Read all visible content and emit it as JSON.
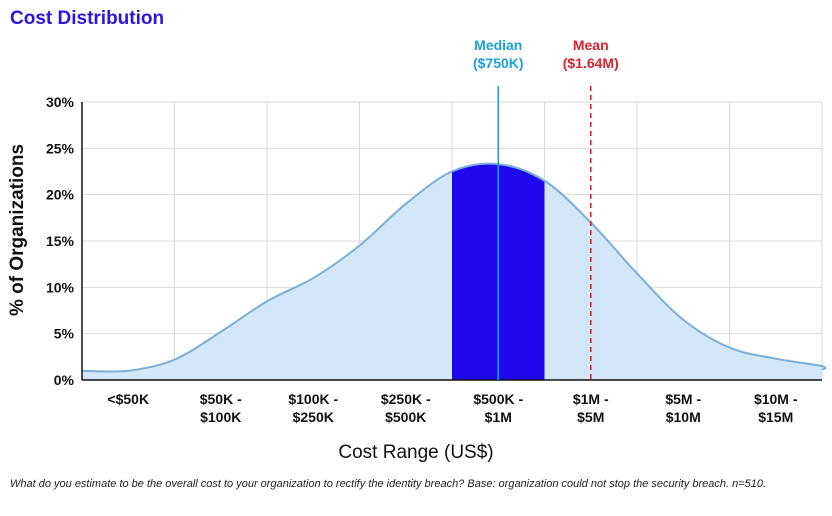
{
  "chart_data": {
    "type": "area",
    "title": "Cost Distribution",
    "xlabel": "Cost Range (US$)",
    "ylabel": "% of Organizations",
    "ylim": [
      0,
      30
    ],
    "yticks": [
      "0%",
      "5%",
      "10%",
      "15%",
      "20%",
      "25%",
      "30%"
    ],
    "categories": [
      [
        "<$50K"
      ],
      [
        "$50K -",
        "$100K"
      ],
      [
        "$100K -",
        "$250K"
      ],
      [
        "$250K -",
        "$500K"
      ],
      [
        "$500K -",
        "$1M"
      ],
      [
        "$1M -",
        "$5M"
      ],
      [
        "$5M -",
        "$10M"
      ],
      [
        "$10M -",
        "$15M"
      ]
    ],
    "curve_points": [
      {
        "x": 0.0,
        "y": 1.0
      },
      {
        "x": 0.5,
        "y": 2.2
      },
      {
        "x": 1.0,
        "y": 5.2
      },
      {
        "x": 1.5,
        "y": 8.5
      },
      {
        "x": 2.0,
        "y": 11.0
      },
      {
        "x": 2.5,
        "y": 14.5
      },
      {
        "x": 3.0,
        "y": 19.0
      },
      {
        "x": 3.5,
        "y": 22.5
      },
      {
        "x": 4.0,
        "y": 23.3
      },
      {
        "x": 4.5,
        "y": 21.5
      },
      {
        "x": 5.0,
        "y": 17.0
      },
      {
        "x": 5.5,
        "y": 11.5
      },
      {
        "x": 6.0,
        "y": 6.5
      },
      {
        "x": 6.5,
        "y": 3.5
      },
      {
        "x": 7.0,
        "y": 2.3
      },
      {
        "x": 7.5,
        "y": 1.5
      }
    ],
    "highlight_range": [
      3.5,
      4.5
    ],
    "median": {
      "label": [
        "Median",
        "($750K)"
      ],
      "x": 4.0
    },
    "mean": {
      "label": [
        "Mean",
        "($1.64M)"
      ],
      "x": 5.0
    },
    "colors": {
      "area_fill": "#d3e7f9",
      "area_line": "#79afd9",
      "highlight": "#2008ee",
      "median": "#1aa0e0",
      "mean": "#e0202c",
      "title": "#2a14e6"
    }
  },
  "footnote": "What do you estimate to be the overall cost to your organization to rectify the identity breach? Base: organization could not stop the security breach. n=510."
}
